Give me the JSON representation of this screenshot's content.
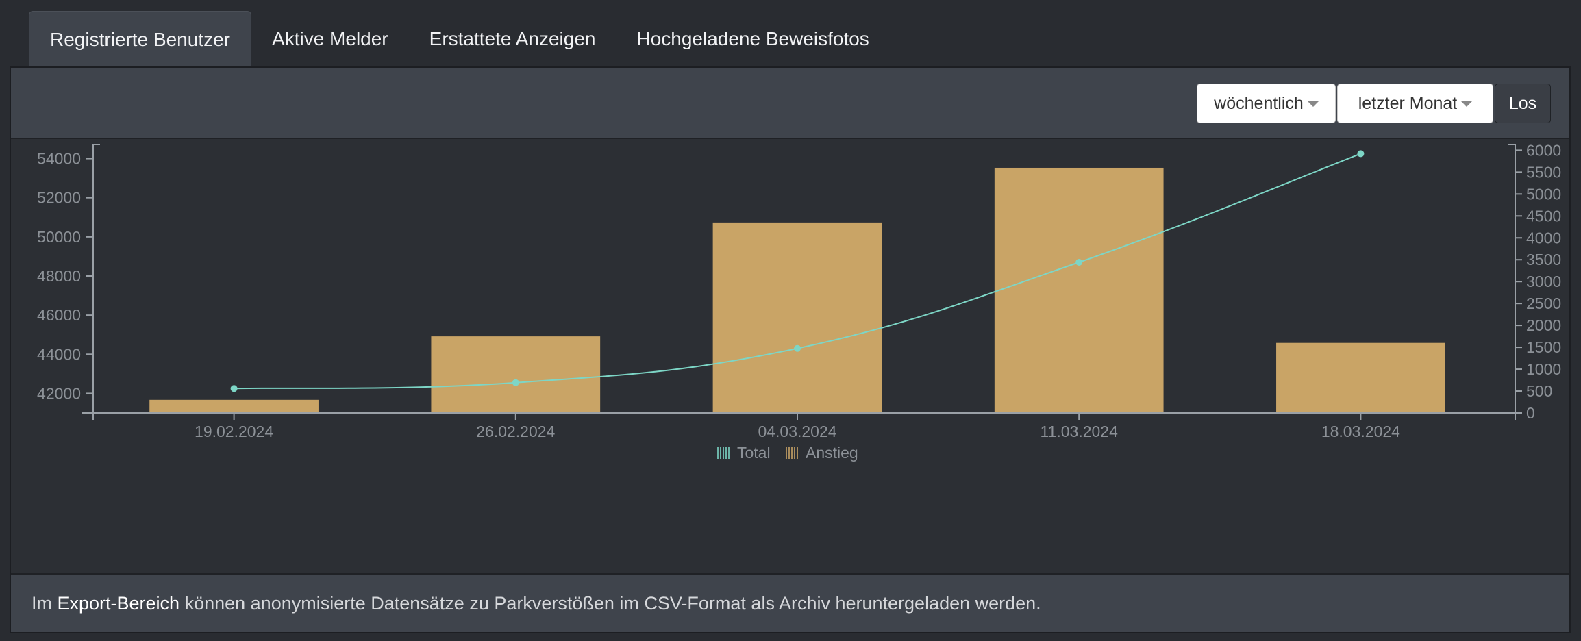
{
  "tabs": [
    {
      "label": "Registrierte Benutzer",
      "active": true
    },
    {
      "label": "Aktive Melder",
      "active": false
    },
    {
      "label": "Erstattete Anzeigen",
      "active": false
    },
    {
      "label": "Hochgeladene Beweisfotos",
      "active": false
    }
  ],
  "toolbar": {
    "interval_select": "wöchentlich",
    "range_select": "letzter Monat",
    "go_label": "Los"
  },
  "chart_data": {
    "type": "bar",
    "categories": [
      "19.02.2024",
      "26.02.2024",
      "04.03.2024",
      "11.03.2024",
      "18.03.2024"
    ],
    "series": [
      {
        "name": "Total",
        "type": "line",
        "axis": "left",
        "color": "#7dd6c6",
        "values": [
          42250,
          42550,
          44300,
          48700,
          54250
        ]
      },
      {
        "name": "Anstieg",
        "type": "bar",
        "axis": "right",
        "color": "#c9a466",
        "values": [
          300,
          1750,
          4350,
          5600,
          1600
        ]
      }
    ],
    "y_left": {
      "ylim": [
        41000,
        55000
      ],
      "ticks": [
        42000,
        44000,
        46000,
        48000,
        50000,
        52000,
        54000
      ]
    },
    "y_right": {
      "ylim": [
        0,
        6100
      ],
      "ticks": [
        0,
        500,
        1000,
        1500,
        2000,
        2500,
        3000,
        3500,
        4000,
        4500,
        5000,
        5500,
        6000
      ]
    },
    "legend": "bottom-center",
    "grid": false
  },
  "footer": {
    "text_before": "Im ",
    "link": "Export-Bereich",
    "text_after": " können anonymisierte Datensätze zu Parkverstößen im CSV-Format als Archiv heruntergeladen werden."
  }
}
